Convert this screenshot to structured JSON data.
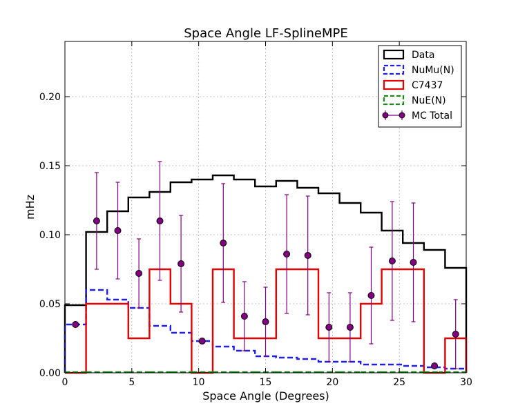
{
  "chart_data": {
    "type": "step-histogram",
    "title": "Space Angle LF-SplineMPE",
    "xlabel": "Space Angle (Degrees)",
    "ylabel": "mHz",
    "xlim": [
      0,
      30
    ],
    "ylim": [
      0,
      0.24
    ],
    "grid": true,
    "legend_position": "top-right",
    "x_ticks": [
      0,
      5,
      10,
      15,
      20,
      25,
      30
    ],
    "y_ticks": [
      0.0,
      0.05,
      0.1,
      0.15,
      0.2
    ],
    "x_tick_labels": [
      "0",
      "5",
      "10",
      "15",
      "20",
      "25",
      "30"
    ],
    "y_tick_labels": [
      "0.00",
      "0.05",
      "0.10",
      "0.15",
      "0.20"
    ],
    "bin_edges": [
      0,
      1.58,
      3.16,
      4.74,
      6.32,
      7.89,
      9.47,
      11.05,
      12.63,
      14.21,
      15.79,
      17.37,
      18.95,
      20.53,
      22.11,
      23.68,
      25.26,
      26.84,
      28.42,
      30
    ],
    "series": [
      {
        "name": "Data",
        "style": "step-solid",
        "color": "#000000",
        "values": [
          0.049,
          0.102,
          0.117,
          0.127,
          0.131,
          0.138,
          0.14,
          0.143,
          0.14,
          0.135,
          0.139,
          0.134,
          0.13,
          0.123,
          0.116,
          0.103,
          0.094,
          0.089,
          0.076
        ]
      },
      {
        "name": "NuMu(N)",
        "style": "step-dashed",
        "color": "#1f1fe6",
        "values": [
          0.035,
          0.06,
          0.053,
          0.047,
          0.034,
          0.029,
          0.023,
          0.019,
          0.016,
          0.012,
          0.011,
          0.01,
          0.008,
          0.008,
          0.006,
          0.006,
          0.005,
          0.004,
          0.003
        ]
      },
      {
        "name": "C7437",
        "style": "step-solid",
        "color": "#e60000",
        "values": [
          0.0,
          0.05,
          0.05,
          0.025,
          0.075,
          0.05,
          0.0,
          0.075,
          0.025,
          0.025,
          0.075,
          0.075,
          0.025,
          0.025,
          0.05,
          0.075,
          0.075,
          0.0,
          0.025
        ]
      },
      {
        "name": "NuE(N)",
        "style": "step-dashed",
        "color": "#1a8a1a",
        "values": [
          0.0005,
          0.0005,
          0.0005,
          0.0005,
          0.0005,
          0.0005,
          0.0005,
          0.0005,
          0.0005,
          0.0005,
          0.0005,
          0.0005,
          0.0005,
          0.0005,
          0.0005,
          0.0005,
          0.0005,
          0.0005,
          0.0005
        ]
      },
      {
        "name": "MC Total",
        "style": "errorbar-points",
        "color": "#800080",
        "x": [
          0.79,
          2.37,
          3.95,
          5.53,
          7.1,
          8.68,
          10.26,
          11.84,
          13.42,
          15.0,
          16.58,
          18.16,
          19.74,
          21.32,
          22.9,
          24.47,
          26.05,
          27.63,
          29.21
        ],
        "values": [
          0.035,
          0.11,
          0.103,
          0.072,
          0.11,
          0.079,
          0.023,
          0.094,
          0.041,
          0.037,
          0.086,
          0.085,
          0.033,
          0.033,
          0.056,
          0.081,
          0.08,
          0.005,
          0.028
        ],
        "errors": [
          0.0,
          0.035,
          0.035,
          0.025,
          0.043,
          0.035,
          0.0,
          0.043,
          0.025,
          0.025,
          0.043,
          0.043,
          0.025,
          0.025,
          0.035,
          0.043,
          0.043,
          0.0,
          0.025
        ]
      }
    ]
  }
}
